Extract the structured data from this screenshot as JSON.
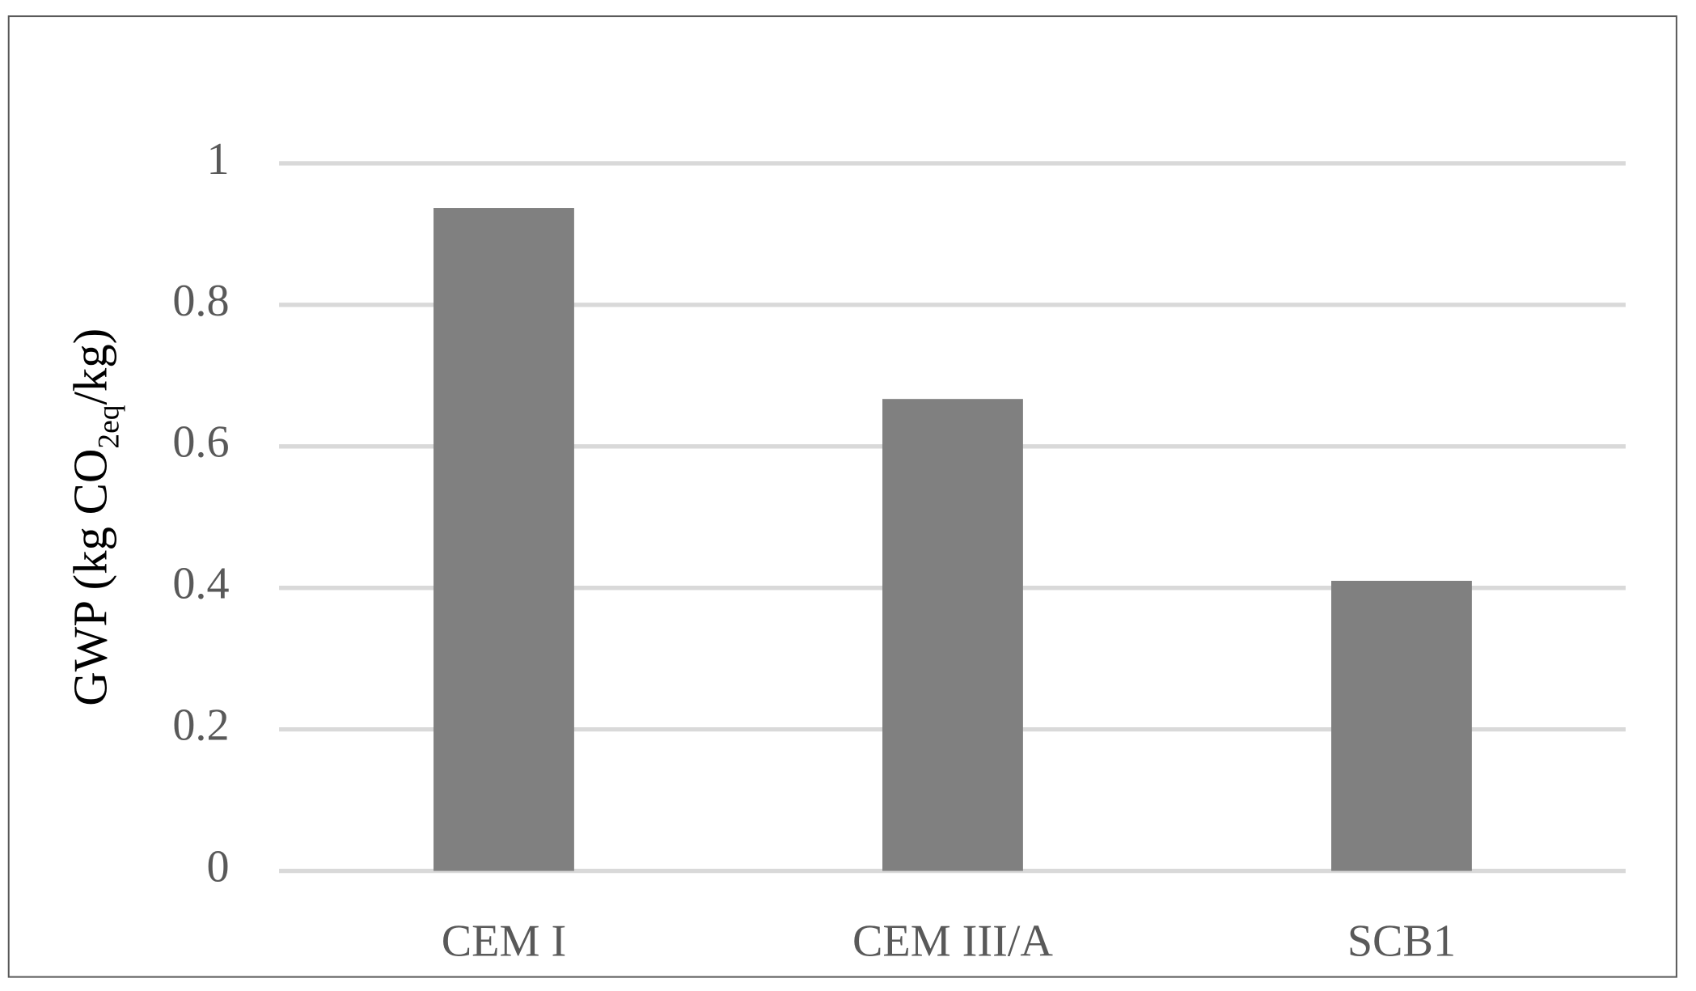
{
  "chart_data": {
    "type": "bar",
    "y_label": {
      "main": "GWP (kg CO",
      "subscript": "2eq",
      "end": "/kg)"
    },
    "categories": [
      "CEM I",
      "CEM III/A",
      "SCB1"
    ],
    "values": [
      0.937,
      0.667,
      0.41
    ],
    "color": "#808080",
    "ylim": [
      0,
      1
    ],
    "yticks": [
      0,
      0.2,
      0.4,
      0.6,
      0.8,
      1
    ],
    "grid": true
  }
}
